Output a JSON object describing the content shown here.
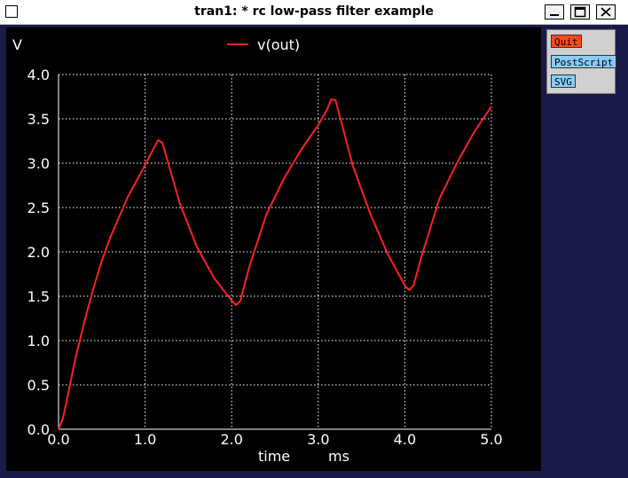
{
  "window": {
    "title": "tran1: * rc low-pass filter example"
  },
  "buttons": {
    "quit": "Quit",
    "postscript": "PostScript",
    "svg": "SVG"
  },
  "colors": {
    "background": "#000000",
    "grid": "#ffffff",
    "trace": "#ff2020",
    "quit_button": "#ff4a1a",
    "export_button": "#87cefa"
  },
  "chart_data": {
    "type": "line",
    "ylabel": "V",
    "xlabel": "time",
    "xunit": "ms",
    "xlim": [
      0,
      5
    ],
    "ylim": [
      0,
      4
    ],
    "xticks": [
      "0.0",
      "1.0",
      "2.0",
      "3.0",
      "4.0",
      "5.0"
    ],
    "yticks": [
      "0.0",
      "0.5",
      "1.0",
      "1.5",
      "2.0",
      "2.5",
      "3.0",
      "3.5",
      "4.0"
    ],
    "grid": true,
    "legend": "top-center",
    "series": [
      {
        "name": "v(out)",
        "x": [
          0,
          0.05,
          0.1,
          0.2,
          0.3,
          0.4,
          0.5,
          0.6,
          0.8,
          1.0,
          1.1,
          1.15,
          1.2,
          1.4,
          1.6,
          1.8,
          2.0,
          2.05,
          2.1,
          2.2,
          2.4,
          2.6,
          2.8,
          3.0,
          3.1,
          3.15,
          3.2,
          3.4,
          3.6,
          3.8,
          4.0,
          4.05,
          4.1,
          4.2,
          4.4,
          4.6,
          4.8,
          5.0
        ],
        "values": [
          0,
          0.12,
          0.35,
          0.82,
          1.22,
          1.58,
          1.9,
          2.17,
          2.62,
          2.98,
          3.17,
          3.26,
          3.23,
          2.55,
          2.05,
          1.7,
          1.45,
          1.4,
          1.45,
          1.82,
          2.42,
          2.82,
          3.15,
          3.43,
          3.6,
          3.72,
          3.71,
          2.97,
          2.43,
          1.98,
          1.62,
          1.57,
          1.62,
          1.97,
          2.6,
          3.0,
          3.35,
          3.64
        ]
      }
    ]
  }
}
